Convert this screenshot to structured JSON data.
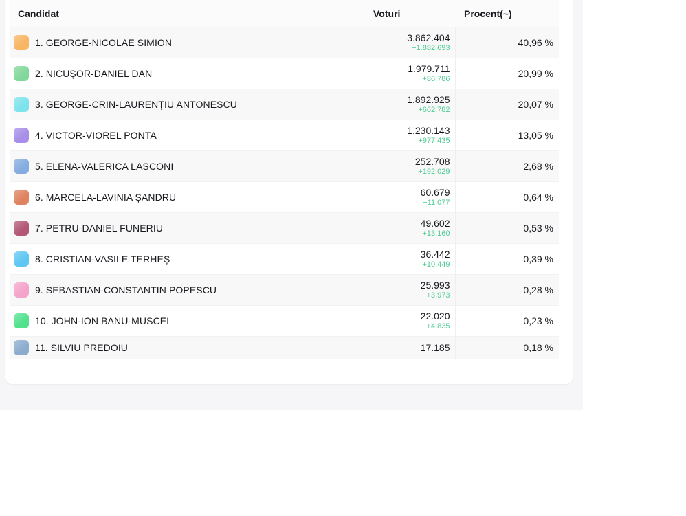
{
  "page": {
    "background_color": "#f6f6f8",
    "card_background_color": "#ffffff"
  },
  "table": {
    "columns": [
      {
        "label": "Candidat"
      },
      {
        "label": "Voturi"
      },
      {
        "label": "Procent(~)"
      }
    ],
    "delta_color": "#4ccb92",
    "rows": [
      {
        "rank": "1.",
        "name": "GEORGE-NICOLAE SIMION",
        "color": "#f8b562",
        "votes": "3.862.404",
        "delta": "+1.882.693",
        "percent": "40,96 %"
      },
      {
        "rank": "2.",
        "name": "NICUȘOR-DANIEL DAN",
        "color": "#82d89b",
        "votes": "1.979.711",
        "delta": "+86.786",
        "percent": "20,99 %"
      },
      {
        "rank": "3.",
        "name": "GEORGE-CRIN-LAURENȚIU ANTONESCU",
        "color": "#7de3ed",
        "votes": "1.892.925",
        "delta": "+662.782",
        "percent": "20,07 %"
      },
      {
        "rank": "4.",
        "name": "VICTOR-VIOREL PONTA",
        "color": "#a78ee8",
        "votes": "1.230.143",
        "delta": "+977.435",
        "percent": "13,05 %"
      },
      {
        "rank": "5.",
        "name": "ELENA-VALERICA LASCONI",
        "color": "#84ace0",
        "votes": "252.708",
        "delta": "+192.029",
        "percent": "2,68 %"
      },
      {
        "rank": "6.",
        "name": "MARCELA-LAVINIA ȘANDRU",
        "color": "#df8260",
        "votes": "60.679",
        "delta": "+11.077",
        "percent": "0,64 %"
      },
      {
        "rank": "7.",
        "name": "PETRU-DANIEL FUNERIU",
        "color": "#b25876",
        "votes": "49.602",
        "delta": "+13.160",
        "percent": "0,53 %"
      },
      {
        "rank": "8.",
        "name": "CRISTIAN-VASILE TERHEȘ",
        "color": "#5fc7f2",
        "votes": "36.442",
        "delta": "+10.449",
        "percent": "0,39 %"
      },
      {
        "rank": "9.",
        "name": "SEBASTIAN-CONSTANTIN POPESCU",
        "color": "#f4a3ca",
        "votes": "25.993",
        "delta": "+3.973",
        "percent": "0,28 %"
      },
      {
        "rank": "10.",
        "name": "JOHN-ION BANU-MUSCEL",
        "color": "#53e18e",
        "votes": "22.020",
        "delta": "+4.835",
        "percent": "0,23 %"
      },
      {
        "rank": "11.",
        "name": "SILVIU PREDOIU",
        "color": "#8caccd",
        "votes": "17.185",
        "delta": "",
        "percent": "0,18 %"
      }
    ]
  }
}
